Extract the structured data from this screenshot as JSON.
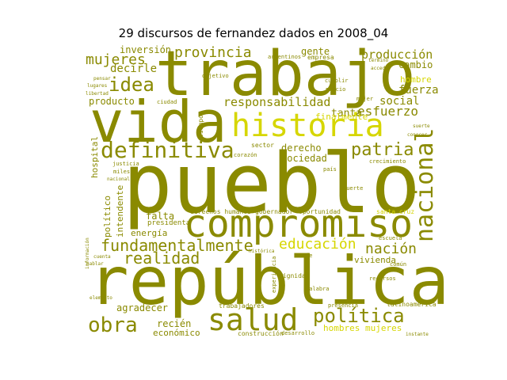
{
  "figure": {
    "title": "29 discursos de fernandez dados en 2008_04",
    "colors": {
      "background": "#ffffff",
      "olive": "#8a8a00",
      "yellow": "#d6d600",
      "dark_olive": "#6e6e00",
      "light_olive": "#a8a800"
    }
  },
  "words": [
    {
      "text": "trabajo"
    },
    {
      "text": "vida"
    },
    {
      "text": "pueblo"
    },
    {
      "text": "república"
    },
    {
      "text": "historia"
    },
    {
      "text": "compromiso"
    },
    {
      "text": "salud"
    },
    {
      "text": "definitiva"
    },
    {
      "text": "nacional"
    },
    {
      "text": "fundamentalmente"
    },
    {
      "text": "política"
    },
    {
      "text": "obra"
    },
    {
      "text": "realidad"
    },
    {
      "text": "idea"
    },
    {
      "text": "provincia"
    },
    {
      "text": "mujeres"
    },
    {
      "text": "patria"
    },
    {
      "text": "educación"
    },
    {
      "text": "nación"
    },
    {
      "text": "responsabilidad"
    },
    {
      "text": "producción"
    },
    {
      "text": "esfuerzo"
    },
    {
      "text": "social"
    },
    {
      "text": "fuerza"
    },
    {
      "text": "inversión"
    },
    {
      "text": "decirle"
    },
    {
      "text": "producto"
    },
    {
      "text": "cambio"
    },
    {
      "text": "hombre"
    },
    {
      "text": "gente"
    },
    {
      "text": "tanta"
    },
    {
      "text": "finalmente"
    },
    {
      "text": "sociedad"
    },
    {
      "text": "derecho"
    },
    {
      "text": "falta"
    },
    {
      "text": "energía"
    },
    {
      "text": "político"
    },
    {
      "text": "intendente"
    },
    {
      "text": "hospital"
    },
    {
      "text": "agradecer"
    },
    {
      "text": "recién"
    },
    {
      "text": "económico"
    },
    {
      "text": "hombres mujeres"
    },
    {
      "text": "vivienda"
    },
    {
      "text": "presidenta"
    },
    {
      "text": "derechos humanos"
    },
    {
      "text": "gobernador"
    },
    {
      "text": "oportunidad"
    },
    {
      "text": "santa cruz"
    },
    {
      "text": "trabajadores"
    },
    {
      "text": "latinoamérica"
    },
    {
      "text": "presencia"
    },
    {
      "text": "construcción"
    },
    {
      "text": "desarrollo"
    },
    {
      "text": "empresa"
    },
    {
      "text": "argentinos"
    },
    {
      "text": "sector"
    },
    {
      "text": "ciudad"
    },
    {
      "text": "objetivo"
    },
    {
      "text": "escuela"
    },
    {
      "text": "dignidad"
    },
    {
      "text": "recursos"
    },
    {
      "text": "común"
    },
    {
      "text": "palabra"
    },
    {
      "text": "histórica"
    },
    {
      "text": "crecimiento"
    },
    {
      "text": "corazón"
    },
    {
      "text": "tiempo"
    },
    {
      "text": "país"
    },
    {
      "text": "precio"
    },
    {
      "text": "mujer"
    },
    {
      "text": "justicia"
    },
    {
      "text": "miles"
    },
    {
      "text": "nacional"
    },
    {
      "text": "instante"
    },
    {
      "text": "fuerte"
    },
    {
      "text": "cumplir"
    },
    {
      "text": "acceder"
    },
    {
      "text": "término"
    },
    {
      "text": "pensar"
    },
    {
      "text": "lugares"
    },
    {
      "text": "libertad"
    },
    {
      "text": "experiencia"
    },
    {
      "text": "información"
    },
    {
      "text": "cuenta"
    },
    {
      "text": "hablar"
    },
    {
      "text": "elemento"
    },
    {
      "text": "suerte"
    },
    {
      "text": "conocer"
    },
    {
      "text": "fe"
    }
  ]
}
